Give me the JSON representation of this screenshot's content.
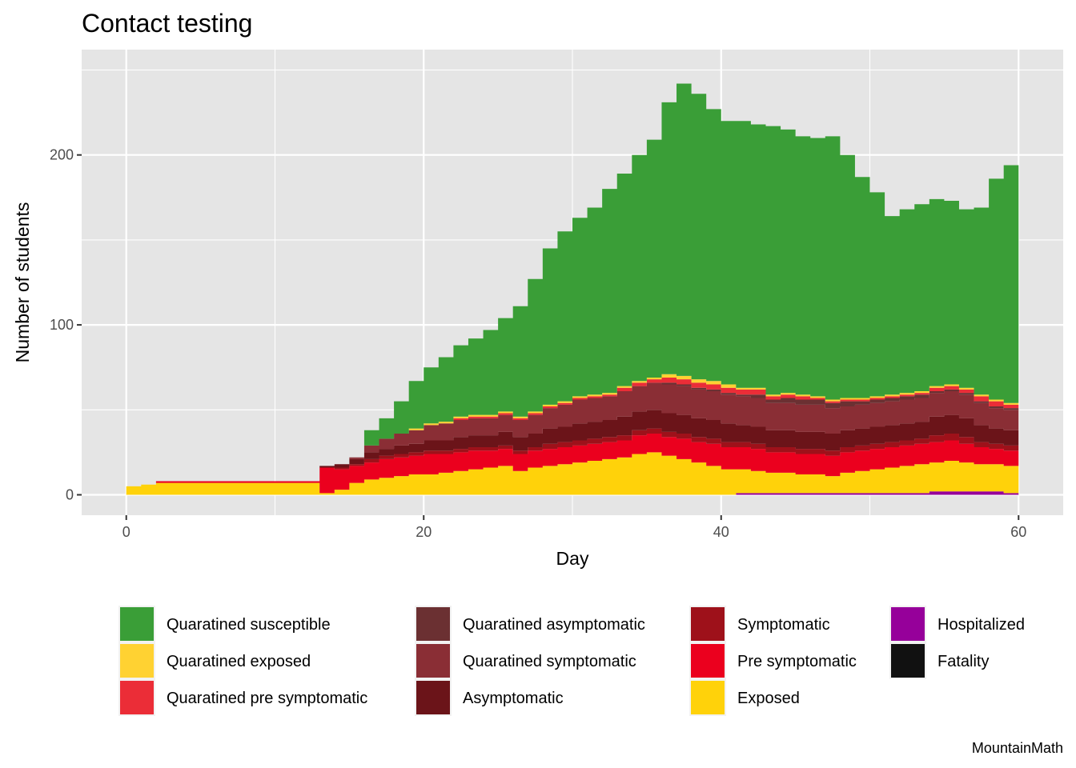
{
  "chart_data": {
    "type": "area",
    "stacked": true,
    "title": "Contact testing",
    "xlabel": "Day",
    "ylabel": "Number of students",
    "caption": "MountainMath",
    "xlim": [
      -3,
      63
    ],
    "ylim": [
      -12,
      262
    ],
    "x_ticks": [
      0,
      20,
      40,
      60
    ],
    "x_tick_labels": [
      "0",
      "20",
      "40",
      "60"
    ],
    "y_ticks": [
      0,
      100,
      200
    ],
    "y_tick_labels": [
      "0",
      "100",
      "200"
    ],
    "x_minor": [
      10,
      30,
      50
    ],
    "y_minor": [
      50,
      150,
      250
    ],
    "grid": true,
    "panel_background": "#E5E5E5",
    "legend_position": "bottom",
    "x": [
      0,
      1,
      2,
      3,
      4,
      5,
      6,
      7,
      8,
      9,
      10,
      11,
      12,
      13,
      14,
      15,
      16,
      17,
      18,
      19,
      20,
      21,
      22,
      23,
      24,
      25,
      26,
      27,
      28,
      29,
      30,
      31,
      32,
      33,
      34,
      35,
      36,
      37,
      38,
      39,
      40,
      41,
      42,
      43,
      44,
      45,
      46,
      47,
      48,
      49,
      50,
      51,
      52,
      53,
      54,
      55,
      56,
      57,
      58,
      59,
      60
    ],
    "series": [
      {
        "name": "Exposed",
        "color": "#FFD20A",
        "values": [
          5,
          6,
          7,
          7,
          7,
          7,
          7,
          7,
          7,
          7,
          7,
          7,
          7,
          1,
          3,
          7,
          9,
          10,
          11,
          12,
          12,
          13,
          14,
          15,
          16,
          17,
          14,
          16,
          17,
          18,
          19,
          20,
          21,
          22,
          24,
          25,
          23,
          21,
          19,
          17,
          15,
          14,
          13,
          12,
          12,
          11,
          11,
          10,
          12,
          13,
          14,
          15,
          16,
          17,
          17,
          18,
          17,
          16,
          16,
          16,
          18
        ]
      },
      {
        "name": "Pre symptomatic",
        "color": "#EB001E",
        "values": [
          0,
          0,
          1,
          1,
          1,
          1,
          1,
          1,
          1,
          1,
          1,
          1,
          1,
          15,
          12,
          10,
          10,
          11,
          11,
          11,
          12,
          11,
          11,
          11,
          10,
          10,
          10,
          10,
          10,
          10,
          10,
          10,
          10,
          10,
          11,
          11,
          11,
          12,
          12,
          13,
          13,
          13,
          13,
          12,
          12,
          12,
          12,
          12,
          12,
          12,
          12,
          12,
          12,
          12,
          12,
          12,
          11,
          10,
          9,
          9,
          10
        ]
      },
      {
        "name": "Symptomatic",
        "color": "#9E111A",
        "values": [
          0,
          0,
          0,
          0,
          0,
          0,
          0,
          0,
          0,
          0,
          0,
          0,
          0,
          0,
          1,
          1,
          2,
          2,
          2,
          2,
          2,
          2,
          2,
          2,
          2,
          2,
          2,
          2,
          3,
          3,
          3,
          3,
          3,
          3,
          3,
          3,
          3,
          3,
          3,
          3,
          3,
          3,
          3,
          3,
          3,
          3,
          3,
          3,
          3,
          3,
          3,
          3,
          3,
          3,
          4,
          4,
          4,
          3,
          3,
          3,
          3
        ]
      },
      {
        "name": "Asymptomatic",
        "color": "#6B1419",
        "values": [
          0,
          0,
          0,
          0,
          0,
          0,
          0,
          0,
          0,
          0,
          0,
          0,
          0,
          1,
          2,
          3,
          4,
          4,
          5,
          5,
          6,
          6,
          7,
          7,
          7,
          8,
          8,
          8,
          9,
          9,
          10,
          10,
          10,
          11,
          11,
          11,
          11,
          11,
          11,
          11,
          11,
          10,
          10,
          10,
          10,
          10,
          10,
          10,
          10,
          10,
          10,
          10,
          10,
          10,
          11,
          11,
          11,
          10,
          9,
          9,
          9
        ]
      },
      {
        "name": "Quaratined symptomatic",
        "color": "#8A2E35",
        "values": [
          0,
          0,
          0,
          0,
          0,
          0,
          0,
          0,
          0,
          0,
          0,
          0,
          0,
          0,
          0,
          1,
          4,
          6,
          7,
          8,
          9,
          10,
          10,
          10,
          10,
          10,
          10,
          11,
          12,
          13,
          14,
          14,
          14,
          15,
          15,
          16,
          17,
          17,
          17,
          17,
          17,
          17,
          17,
          16,
          16,
          16,
          16,
          15,
          14,
          14,
          14,
          14,
          14,
          14,
          14,
          14,
          14,
          13,
          12,
          12,
          13
        ]
      },
      {
        "name": "Quaratined asymptomatic",
        "color": "#6B3032",
        "values": [
          0,
          0,
          0,
          0,
          0,
          0,
          0,
          0,
          0,
          0,
          0,
          0,
          0,
          0,
          0,
          0,
          0,
          0,
          0,
          0,
          0,
          0,
          0,
          0,
          0,
          0,
          0,
          0,
          0,
          0,
          0,
          0,
          0,
          0,
          0,
          0,
          1,
          1,
          1,
          1,
          1,
          1,
          2,
          2,
          3,
          3,
          3,
          3,
          3,
          2,
          2,
          2,
          2,
          2,
          1,
          1,
          1,
          1,
          1,
          1,
          1
        ]
      },
      {
        "name": "Quaratined pre symptomatic",
        "color": "#EB2D37",
        "values": [
          0,
          0,
          0,
          0,
          0,
          0,
          0,
          0,
          0,
          0,
          0,
          0,
          0,
          0,
          0,
          0,
          0,
          0,
          0,
          0,
          0,
          0,
          1,
          1,
          1,
          1,
          1,
          1,
          1,
          1,
          1,
          1,
          1,
          2,
          2,
          2,
          3,
          3,
          3,
          3,
          3,
          3,
          3,
          2,
          2,
          2,
          1,
          1,
          1,
          1,
          1,
          1,
          1,
          1,
          2,
          2,
          2,
          3,
          3,
          2,
          2
        ]
      },
      {
        "name": "Quaratined exposed",
        "color": "#FFD232",
        "values": [
          0,
          0,
          0,
          0,
          0,
          0,
          0,
          0,
          0,
          0,
          0,
          0,
          0,
          0,
          0,
          0,
          0,
          0,
          0,
          1,
          1,
          1,
          1,
          1,
          1,
          1,
          1,
          1,
          1,
          1,
          1,
          1,
          1,
          1,
          1,
          1,
          2,
          2,
          2,
          2,
          2,
          1,
          1,
          1,
          1,
          1,
          1,
          1,
          1,
          1,
          1,
          1,
          1,
          1,
          1,
          1,
          1,
          1,
          1,
          1,
          1
        ]
      },
      {
        "name": "Quaratined susceptible",
        "color": "#3A9E37",
        "values": [
          0,
          0,
          0,
          0,
          0,
          0,
          0,
          0,
          0,
          0,
          0,
          0,
          0,
          0,
          0,
          0,
          9,
          12,
          19,
          28,
          33,
          38,
          42,
          45,
          50,
          55,
          65,
          78,
          92,
          100,
          105,
          110,
          120,
          125,
          133,
          140,
          160,
          172,
          168,
          160,
          155,
          157,
          155,
          158,
          155,
          152,
          152,
          155,
          143,
          130,
          120,
          105,
          108,
          110,
          110,
          108,
          105,
          110,
          130,
          140,
          130
        ]
      },
      {
        "name": "Hospitalized",
        "color": "#96009A",
        "values": [
          0,
          0,
          0,
          0,
          0,
          0,
          0,
          0,
          0,
          0,
          0,
          0,
          0,
          0,
          0,
          0,
          0,
          0,
          0,
          0,
          0,
          0,
          0,
          0,
          0,
          0,
          0,
          0,
          0,
          0,
          0,
          0,
          0,
          0,
          0,
          0,
          0,
          0,
          0,
          0,
          0,
          1,
          1,
          1,
          1,
          1,
          1,
          1,
          1,
          1,
          1,
          1,
          1,
          1,
          2,
          2,
          2,
          2,
          2,
          1,
          1
        ]
      },
      {
        "name": "Fatality",
        "color": "#111111",
        "values": [
          0,
          0,
          0,
          0,
          0,
          0,
          0,
          0,
          0,
          0,
          0,
          0,
          0,
          0,
          0,
          0,
          0,
          0,
          0,
          0,
          0,
          0,
          0,
          0,
          0,
          0,
          0,
          0,
          0,
          0,
          0,
          0,
          0,
          0,
          0,
          0,
          0,
          0,
          0,
          0,
          0,
          0,
          0,
          0,
          0,
          0,
          0,
          0,
          0,
          0,
          0,
          0,
          0,
          0,
          0,
          0,
          0,
          0,
          0,
          0,
          0
        ]
      }
    ],
    "stack_order_bottom_to_top": [
      "Hospitalized",
      "Fatality",
      "Exposed",
      "Pre symptomatic",
      "Symptomatic",
      "Asymptomatic",
      "Quaratined symptomatic",
      "Quaratined asymptomatic",
      "Quaratined pre symptomatic",
      "Quaratined exposed",
      "Quaratined susceptible"
    ],
    "legend": [
      {
        "label": "Quaratined susceptible",
        "color": "#3A9E37"
      },
      {
        "label": "Quaratined exposed",
        "color": "#FFD232"
      },
      {
        "label": "Quaratined pre symptomatic",
        "color": "#EB2D37"
      },
      {
        "label": "Quaratined asymptomatic",
        "color": "#6B3032"
      },
      {
        "label": "Quaratined symptomatic",
        "color": "#8A2E35"
      },
      {
        "label": "Asymptomatic",
        "color": "#6B1419"
      },
      {
        "label": "Symptomatic",
        "color": "#9E111A"
      },
      {
        "label": "Pre symptomatic",
        "color": "#EB001E"
      },
      {
        "label": "Exposed",
        "color": "#FFD20A"
      },
      {
        "label": "Hospitalized",
        "color": "#96009A"
      },
      {
        "label": "Fatality",
        "color": "#111111"
      }
    ]
  }
}
